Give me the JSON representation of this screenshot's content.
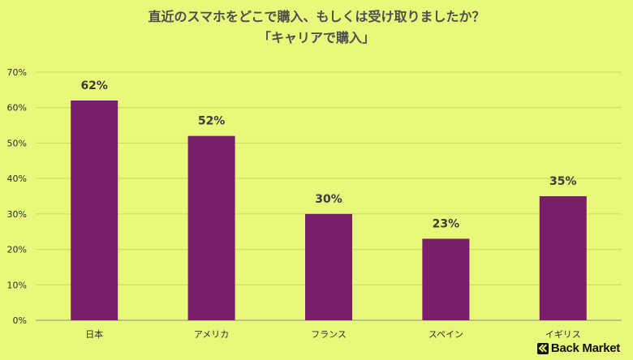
{
  "chart_data": {
    "type": "bar",
    "title": "直近のスマホをどこで購入、もしくは受け取りましたか？",
    "subtitle": "「キャリアで購入」",
    "categories": [
      "日本",
      "アメリカ",
      "フランス",
      "スペイン",
      "イギリス"
    ],
    "values": [
      62,
      52,
      30,
      23,
      35
    ],
    "value_labels": [
      "62%",
      "52%",
      "30%",
      "23%",
      "35%"
    ],
    "ylim": [
      0,
      70
    ],
    "yticks": [
      0,
      10,
      20,
      30,
      40,
      50,
      60,
      70
    ],
    "ytick_labels": [
      "0%",
      "10%",
      "20%",
      "30%",
      "40%",
      "50%",
      "60%",
      "70%"
    ],
    "xlabel": "",
    "ylabel": "",
    "grid": true,
    "bar_color": "#781e6b",
    "background_color": "#e7f87a"
  },
  "brand": {
    "name": "Back Market",
    "icon": "back-market-logo-icon"
  }
}
